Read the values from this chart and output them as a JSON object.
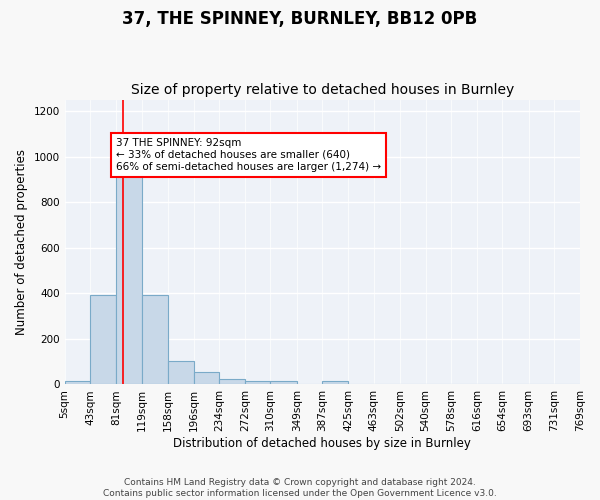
{
  "title": "37, THE SPINNEY, BURNLEY, BB12 0PB",
  "subtitle": "Size of property relative to detached houses in Burnley",
  "xlabel": "Distribution of detached houses by size in Burnley",
  "ylabel": "Number of detached properties",
  "bin_edges": [
    5,
    43,
    81,
    119,
    158,
    196,
    234,
    272,
    310,
    349,
    387,
    425,
    463,
    502,
    540,
    578,
    616,
    654,
    693,
    731,
    769
  ],
  "bar_heights": [
    13,
    393,
    958,
    393,
    105,
    55,
    24,
    13,
    13,
    0,
    13,
    0,
    0,
    0,
    0,
    0,
    0,
    0,
    0,
    0
  ],
  "bar_color": "#c8d8e8",
  "bar_edgecolor": "#7aaac8",
  "bar_linewidth": 0.8,
  "bg_color": "#eef2f8",
  "fig_bg_color": "#f8f8f8",
  "grid_color": "#ffffff",
  "red_line_x": 92,
  "annotation_text": "37 THE SPINNEY: 92sqm\n← 33% of detached houses are smaller (640)\n66% of semi-detached houses are larger (1,274) →",
  "ylim": [
    0,
    1250
  ],
  "yticks": [
    0,
    200,
    400,
    600,
    800,
    1000,
    1200
  ],
  "footer_line1": "Contains HM Land Registry data © Crown copyright and database right 2024.",
  "footer_line2": "Contains public sector information licensed under the Open Government Licence v3.0.",
  "title_fontsize": 12,
  "subtitle_fontsize": 10,
  "axis_label_fontsize": 8.5,
  "tick_fontsize": 7.5,
  "footer_fontsize": 6.5
}
